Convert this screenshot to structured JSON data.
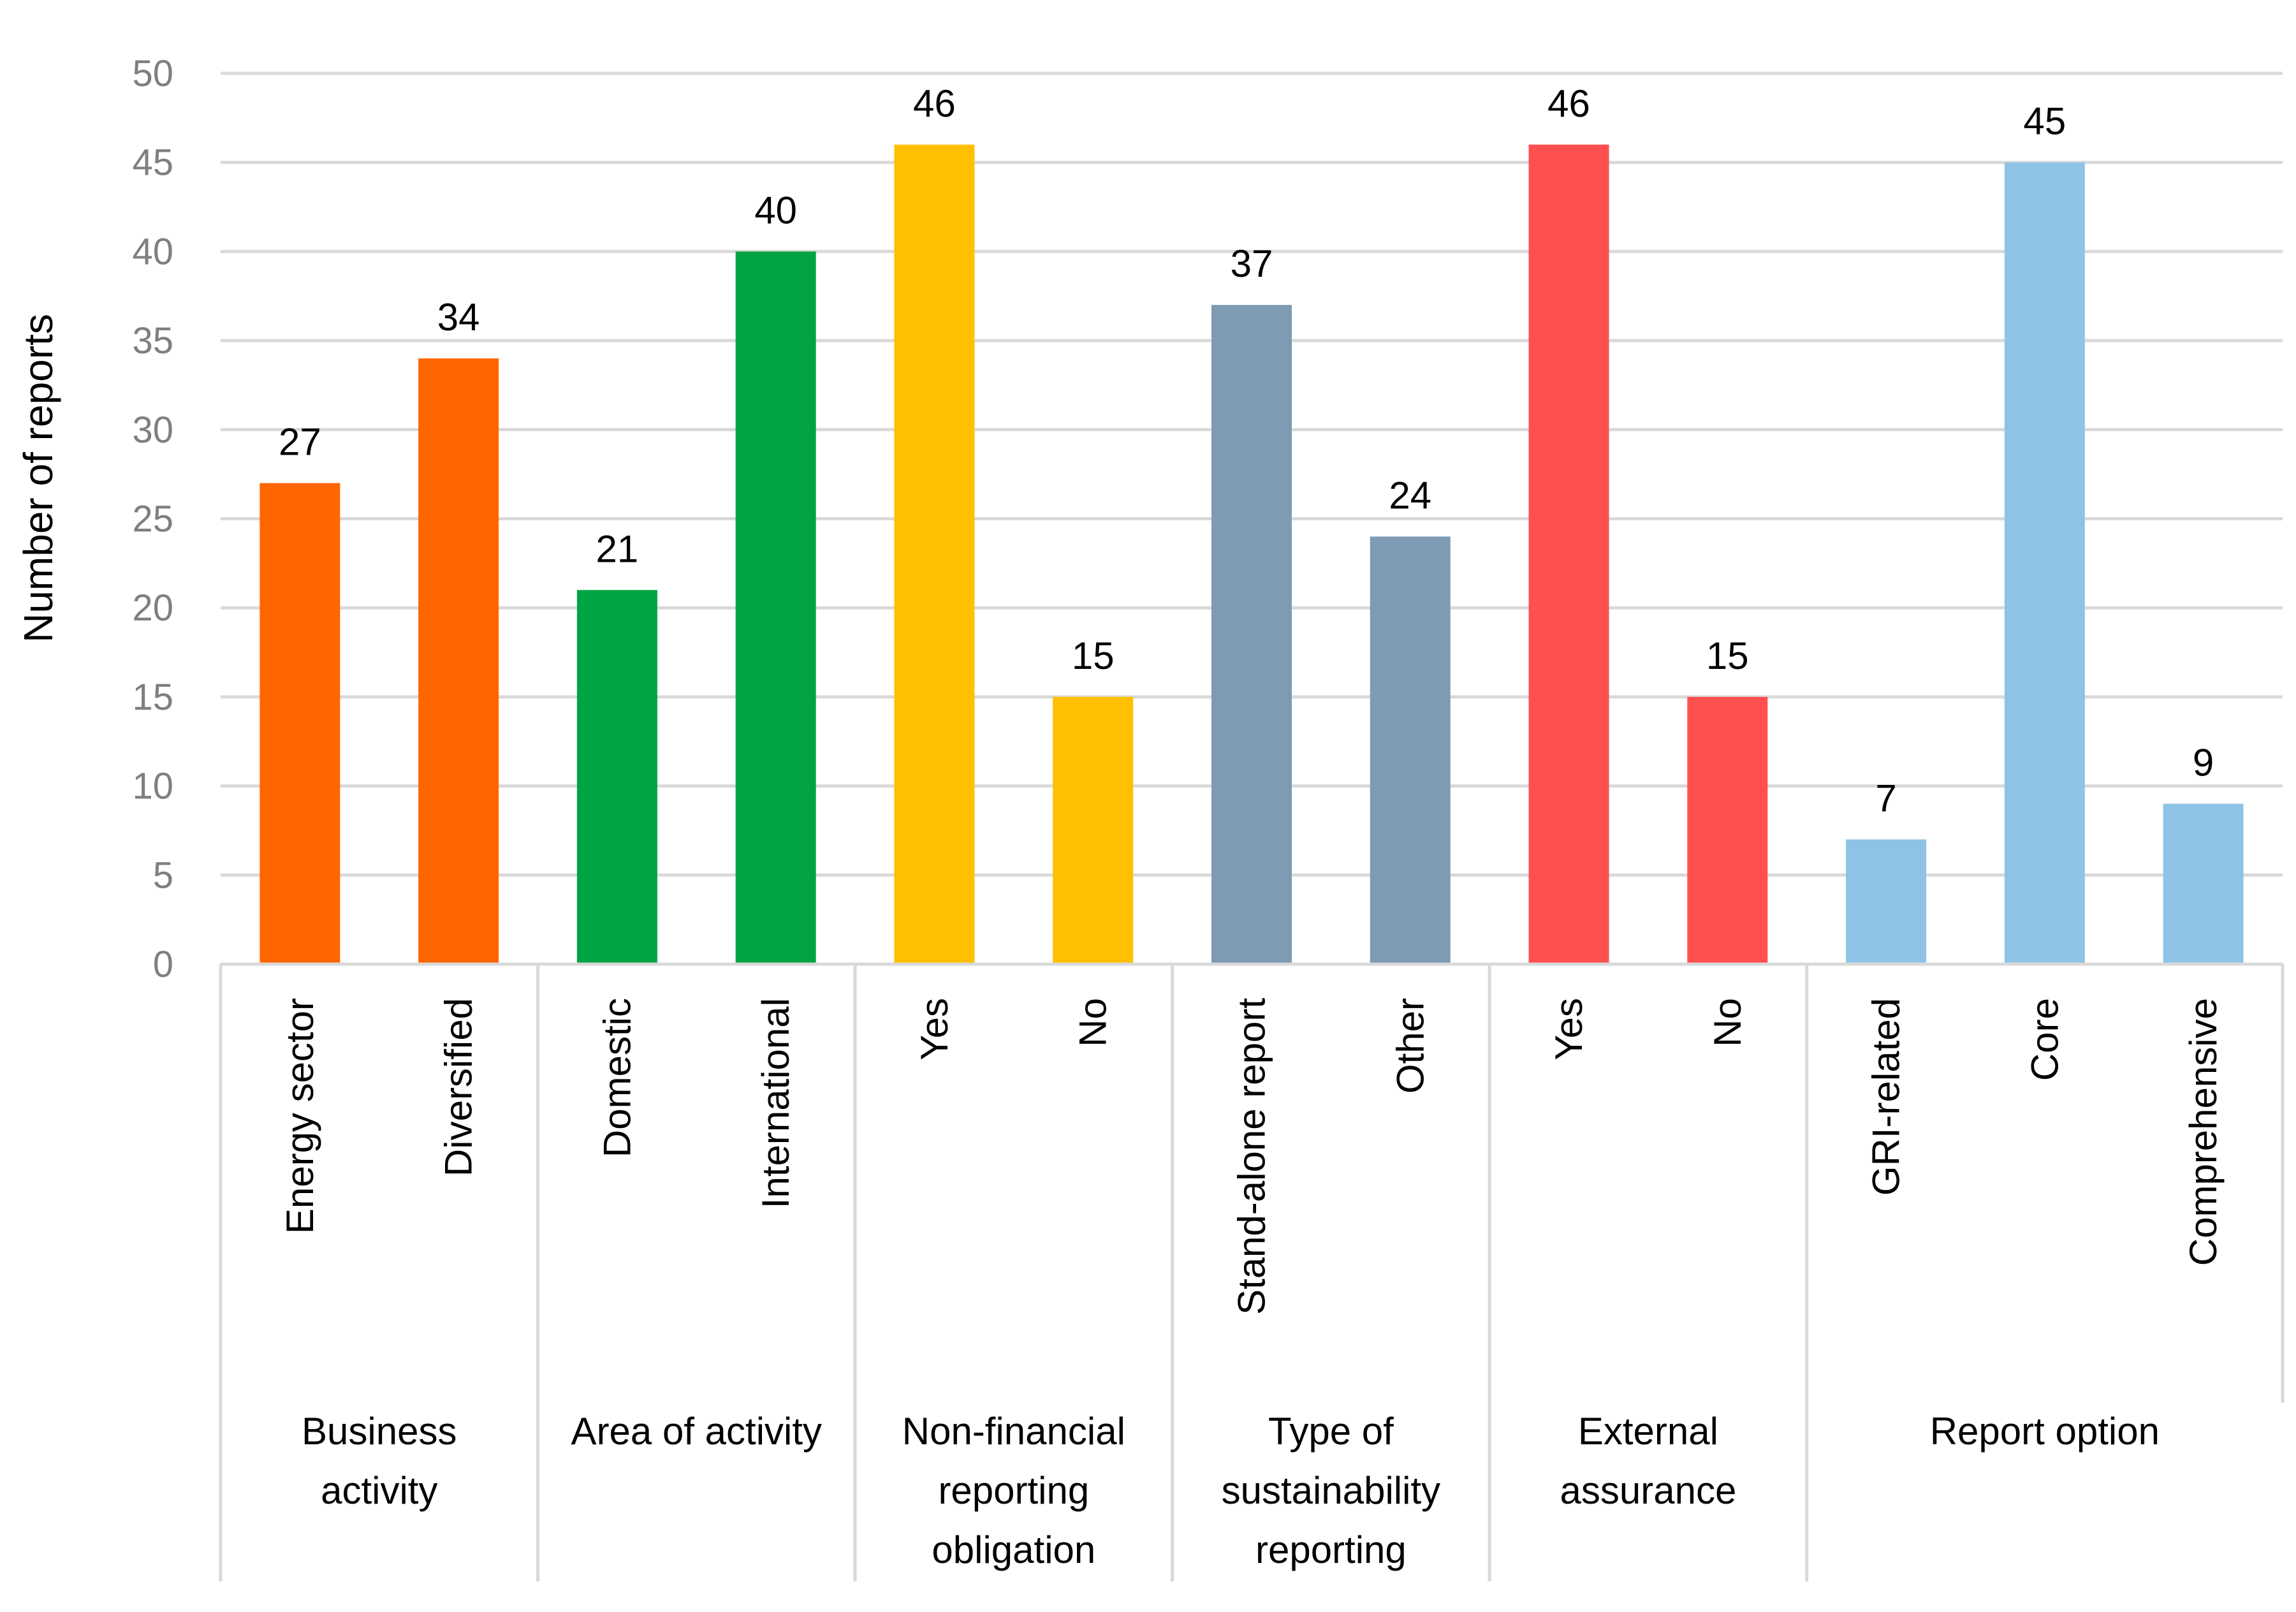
{
  "chart_data": {
    "type": "bar",
    "title": "",
    "xlabel": "",
    "ylabel": "Number of reports",
    "ylim": [
      0,
      50
    ],
    "yticks": [
      0,
      5,
      10,
      15,
      20,
      25,
      30,
      35,
      40,
      45,
      50
    ],
    "grid": true,
    "legend": "none",
    "groups": [
      {
        "label_lines": [
          "Business",
          "activity"
        ],
        "color": "#FF6600",
        "bars": [
          {
            "category": "Energy sector",
            "value": 27
          },
          {
            "category": "Diversified",
            "value": 34
          }
        ]
      },
      {
        "label_lines": [
          "Area of activity"
        ],
        "color": "#00A443",
        "bars": [
          {
            "category": "Domestic",
            "value": 21
          },
          {
            "category": "International",
            "value": 40
          }
        ]
      },
      {
        "label_lines": [
          "Non-financial",
          "reporting",
          "obligation"
        ],
        "color": "#FFC000",
        "bars": [
          {
            "category": "Yes",
            "value": 46
          },
          {
            "category": "No",
            "value": 15
          }
        ]
      },
      {
        "label_lines": [
          "Type of",
          "sustainability",
          "reporting"
        ],
        "color": "#7F9AB3",
        "bars": [
          {
            "category": "Stand-alone report",
            "value": 37
          },
          {
            "category": "Other",
            "value": 24
          }
        ]
      },
      {
        "label_lines": [
          "External",
          "assurance"
        ],
        "color": "#FF4F4F",
        "bars": [
          {
            "category": "Yes",
            "value": 46
          },
          {
            "category": "No",
            "value": 15
          }
        ]
      },
      {
        "label_lines": [
          "Report option"
        ],
        "color": "#8EC3E6",
        "bars": [
          {
            "category": "GRI-related",
            "value": 7
          },
          {
            "category": "Core",
            "value": 45
          },
          {
            "category": "Comprehensive",
            "value": 9
          }
        ]
      }
    ]
  }
}
